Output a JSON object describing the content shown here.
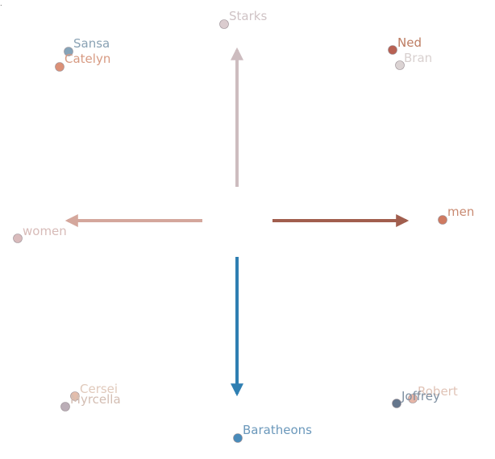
{
  "corner_mark": ".",
  "arrows": [
    {
      "name": "up",
      "color": "#cdbcbf"
    },
    {
      "name": "left",
      "color": "#d4a79c"
    },
    {
      "name": "right",
      "color": "#a15e4e"
    },
    {
      "name": "down",
      "color": "#2f7fb2"
    }
  ],
  "points": [
    {
      "id": "starks",
      "label": "Starks",
      "color": "#d9c9cc",
      "label_color": "#cfc3c5"
    },
    {
      "id": "sansa",
      "label": "Sansa",
      "color": "#7f9fb5",
      "label_color": "#8aa2b4"
    },
    {
      "id": "catelyn",
      "label": "Catelyn",
      "color": "#d98a70",
      "label_color": "#d79a82"
    },
    {
      "id": "ned",
      "label": "Ned",
      "color": "#b4584a",
      "label_color": "#bd7c62"
    },
    {
      "id": "bran",
      "label": "Bran",
      "color": "#d9d1d1",
      "label_color": "#d8d0cf"
    },
    {
      "id": "men",
      "label": "men",
      "color": "#cc7358",
      "label_color": "#c98a72"
    },
    {
      "id": "women",
      "label": "women",
      "color": "#d7b7b8",
      "label_color": "#d7bbb8"
    },
    {
      "id": "cersei",
      "label": "Cersei",
      "color": "#e3b9a6",
      "label_color": "#e0c9bb"
    },
    {
      "id": "myrcella",
      "label": "Myrcella",
      "color": "#b7aab3",
      "label_color": "#d3bdb2"
    },
    {
      "id": "robert",
      "label": "Robert",
      "color": "#e6b2a2",
      "label_color": "#e0c3b6"
    },
    {
      "id": "joffrey",
      "label": "Joffrey",
      "color": "#5d6f86",
      "label_color": "#7e8fa1"
    },
    {
      "id": "baratheons",
      "label": "Baratheons",
      "color": "#3f85b6",
      "label_color": "#6b98bb"
    }
  ]
}
